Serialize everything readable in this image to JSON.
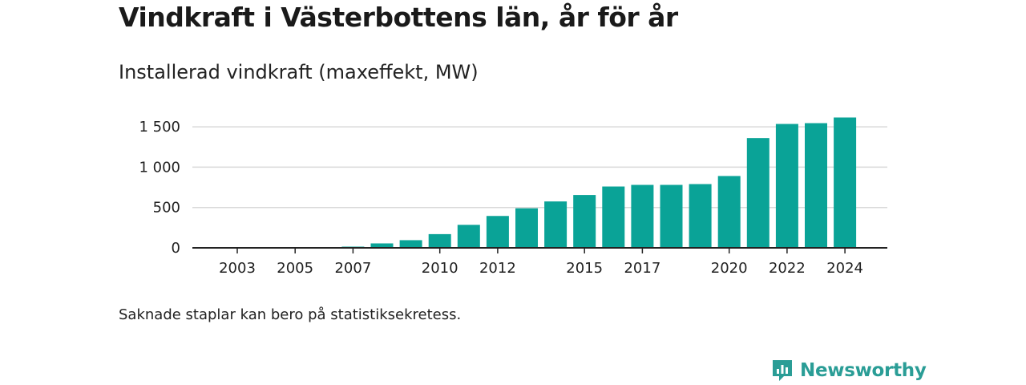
{
  "title": "Vindkraft i Västerbottens län, år för år",
  "subtitle": "Installerad vindkraft (maxeffekt, MW)",
  "note": "Saknade staplar kan bero på statistiksekretess.",
  "brand": {
    "name": "Newsworthy",
    "icon": "newsworthy-logo-icon",
    "color": "#2a9d96"
  },
  "colors": {
    "bar": "#0aa397",
    "grid": "#d9d9d9",
    "axis": "#222222"
  },
  "chart_data": {
    "type": "bar",
    "ylim": [
      0,
      1600
    ],
    "y_ticks": [
      0,
      500,
      1000,
      1500
    ],
    "y_tick_labels": [
      "0",
      "500",
      "1 000",
      "1 500"
    ],
    "x_tick_labels": [
      "2003",
      "2005",
      "2007",
      "2010",
      "2012",
      "2015",
      "2017",
      "2020",
      "2022",
      "2024"
    ],
    "categories": [
      "2003",
      "2004",
      "2005",
      "2006",
      "2007",
      "2008",
      "2009",
      "2010",
      "2011",
      "2012",
      "2013",
      "2014",
      "2015",
      "2016",
      "2017",
      "2018",
      "2019",
      "2020",
      "2021",
      "2022",
      "2023",
      "2024"
    ],
    "values": [
      1,
      1,
      1,
      1,
      15,
      55,
      95,
      170,
      285,
      395,
      490,
      575,
      655,
      760,
      780,
      780,
      790,
      890,
      1360,
      1535,
      1545,
      1615
    ],
    "grid": true
  }
}
